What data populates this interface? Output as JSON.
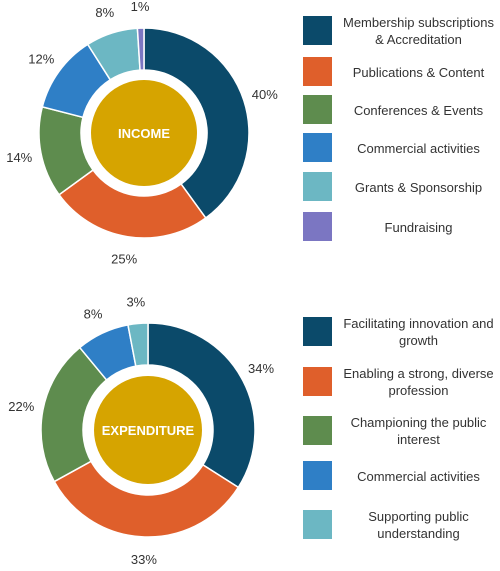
{
  "chart_data": [
    {
      "type": "pie",
      "center_label": "INCOME",
      "categories": [
        "Membership subscriptions & Accreditation",
        "Publications & Content",
        "Conferences & Events",
        "Commercial activities",
        "Grants & Sponsorship",
        "Fundraising"
      ],
      "values": [
        40,
        25,
        14,
        12,
        8,
        1
      ],
      "value_labels": [
        "40%",
        "25%",
        "14%",
        "12%",
        "8%",
        "1%"
      ],
      "colors": [
        "#0b4a6a",
        "#df5f2b",
        "#5e8c4e",
        "#2f7fc6",
        "#6cb7c3",
        "#7b76c2"
      ],
      "legend_placement": "right"
    },
    {
      "type": "pie",
      "center_label": "EXPENDITURE",
      "categories": [
        "Facilitating innovation and growth",
        "Enabling a strong, diverse profession",
        "Championing the public interest",
        "Commercial activities",
        "Supporting public understanding"
      ],
      "values": [
        34,
        33,
        22,
        8,
        3
      ],
      "value_labels": [
        "34%",
        "33%",
        "22%",
        "8%",
        "3%"
      ],
      "colors": [
        "#0b4a6a",
        "#df5f2b",
        "#5e8c4e",
        "#2f7fc6",
        "#6cb7c3"
      ],
      "legend_placement": "right"
    }
  ],
  "center_color": "#d6a400"
}
